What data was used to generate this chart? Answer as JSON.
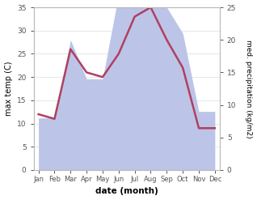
{
  "months": [
    "Jan",
    "Feb",
    "Mar",
    "Apr",
    "May",
    "Jun",
    "Jul",
    "Aug",
    "Sep",
    "Oct",
    "Nov",
    "Dec"
  ],
  "max_temp": [
    12,
    11,
    26,
    21,
    20,
    25,
    33,
    35,
    28,
    22,
    9,
    9
  ],
  "precipitation": [
    8,
    8,
    20,
    14,
    14,
    27,
    28,
    28,
    25,
    21,
    9,
    9
  ],
  "temp_color": "#b04060",
  "precip_fill_color": "#bcc5e8",
  "temp_ylim": [
    0,
    35
  ],
  "precip_ylim": [
    0,
    25
  ],
  "temp_yticks": [
    0,
    5,
    10,
    15,
    20,
    25,
    30,
    35
  ],
  "precip_yticks": [
    0,
    5,
    10,
    15,
    20,
    25
  ],
  "xlabel": "date (month)",
  "ylabel_left": "max temp (C)",
  "ylabel_right": "med. precipitation (kg/m2)",
  "bg_color": "#ffffff"
}
